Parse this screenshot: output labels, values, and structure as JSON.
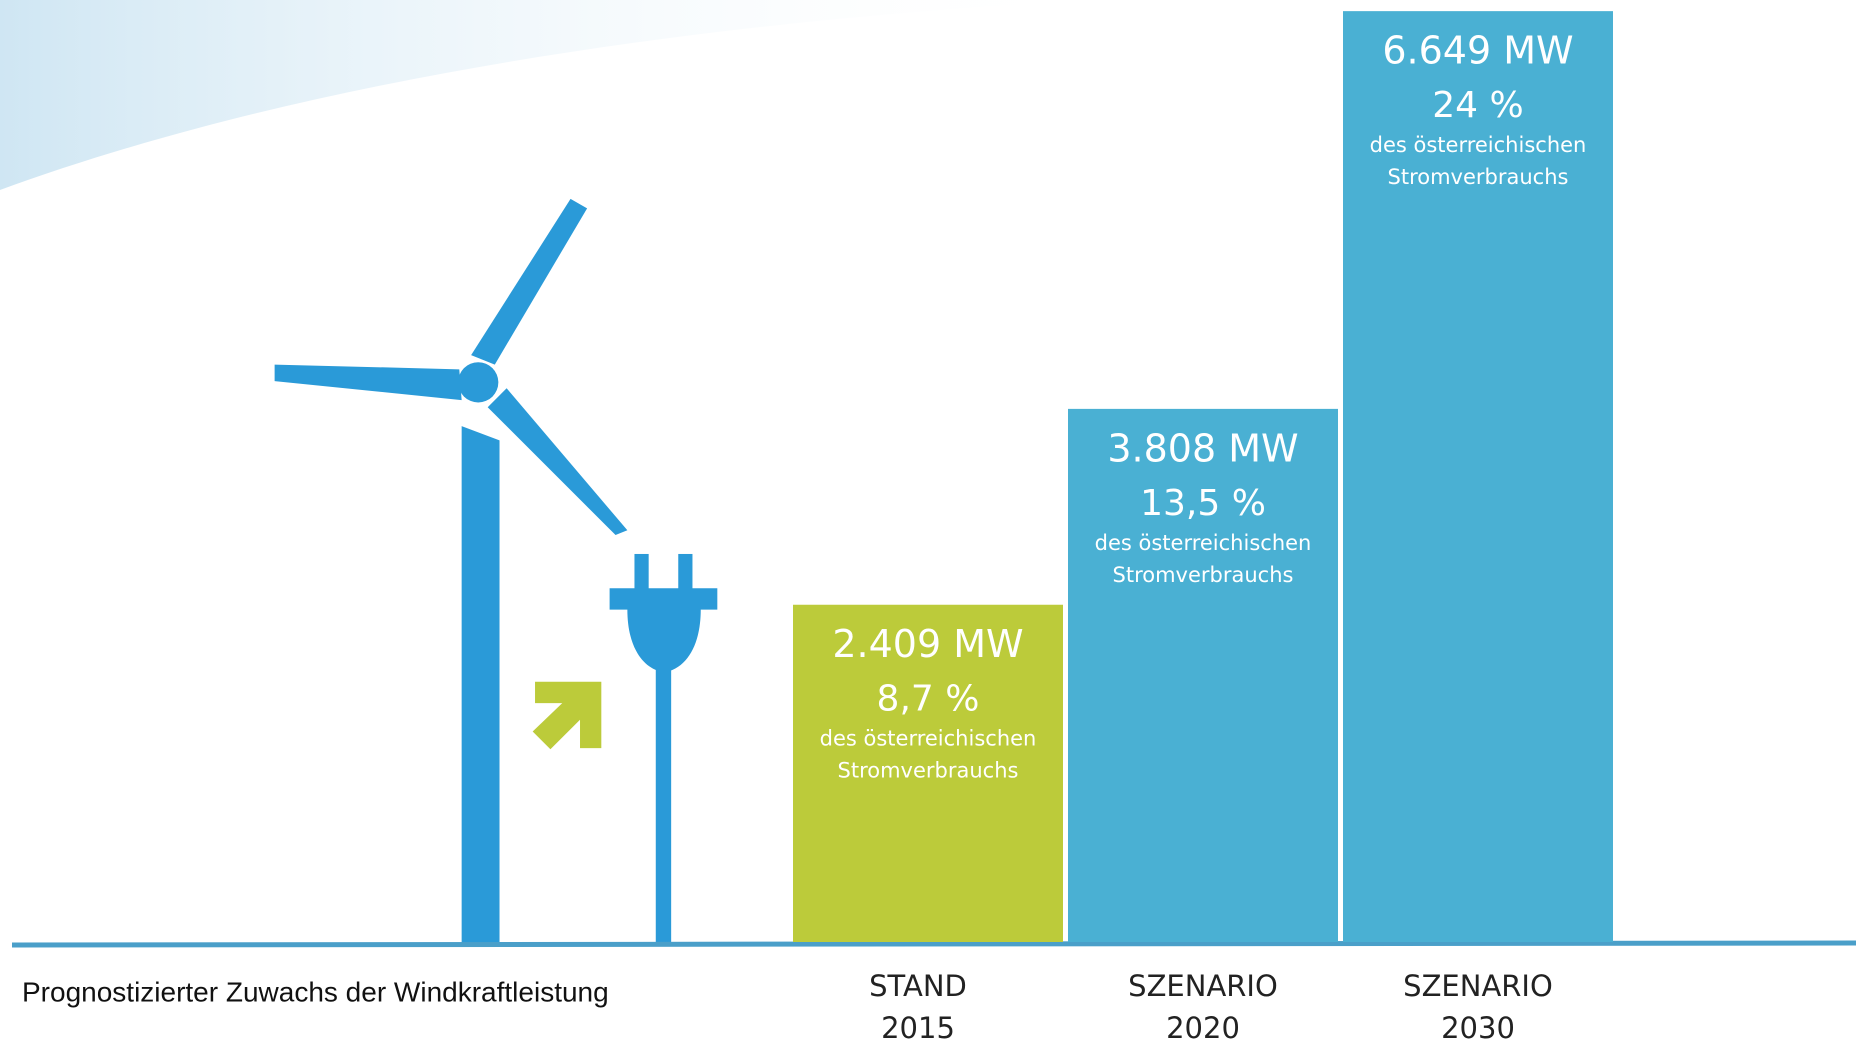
{
  "chart_data": {
    "type": "bar",
    "caption": "Prognostizierter Zuwachs der Windkraftleistung",
    "categories": [
      [
        "STAND",
        "2015"
      ],
      [
        "SZENARIO",
        "2020"
      ],
      [
        "SZENARIO",
        "2030"
      ]
    ],
    "values": [
      2409,
      3808,
      6649
    ],
    "value_labels": [
      "2.409 MW",
      "3.808 MW",
      "6.649 MW"
    ],
    "shares": [
      8.7,
      13.5,
      24
    ],
    "share_labels": [
      "8,7 %",
      "13,5 %",
      "24 %"
    ],
    "share_note": [
      "des österreichischen",
      "Stromverbrauchs"
    ],
    "colors": [
      "#bccb3a",
      "#4ab0d3",
      "#4ab0d3"
    ],
    "ylim": [
      0,
      6700
    ]
  }
}
